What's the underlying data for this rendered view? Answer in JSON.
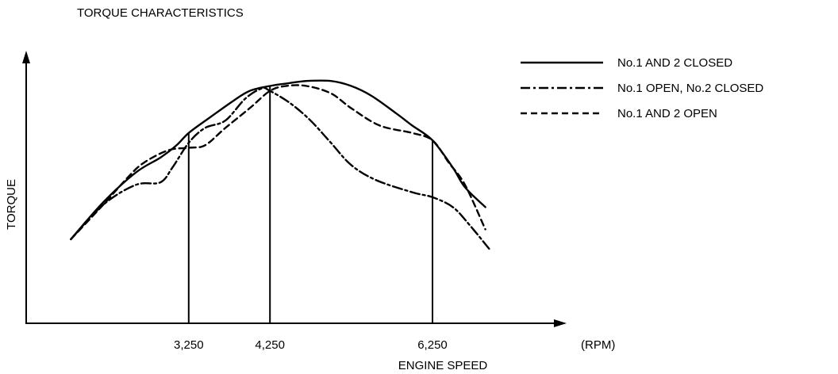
{
  "chart_data": {
    "type": "line",
    "title": "TORQUE CHARACTERISTICS",
    "xlabel": "ENGINE SPEED",
    "ylabel": "TORQUE",
    "x_unit": "(RPM)",
    "x_ticks": [
      {
        "value": 3250,
        "label": "3,250"
      },
      {
        "value": 4250,
        "label": "4,250"
      },
      {
        "value": 6250,
        "label": "6,250"
      }
    ],
    "y_ticks": [],
    "xlim": [
      1250,
      7500
    ],
    "ylim": [
      0,
      100
    ],
    "grid": false,
    "legend_position": "top-right",
    "series": [
      {
        "name": "No.1 AND 2 CLOSED",
        "style": "solid",
        "color": "#000000",
        "x": [
          1800,
          2200,
          2600,
          2900,
          3100,
          3250,
          3500,
          3800,
          4000,
          4250,
          4450,
          4700,
          5000,
          5250,
          5500,
          5800,
          6000,
          6250,
          6500,
          6650,
          6900
        ],
        "y": [
          34,
          49,
          61,
          67,
          72,
          77,
          83,
          90,
          94,
          96,
          97,
          98,
          98,
          96,
          92,
          85,
          80,
          74,
          63,
          55,
          47
        ]
      },
      {
        "name": "No.1 OPEN, No.2 CLOSED",
        "style": "dash-dot",
        "color": "#000000",
        "x": [
          1800,
          2200,
          2600,
          2900,
          3050,
          3250,
          3450,
          3700,
          3950,
          4150,
          4250,
          4500,
          4750,
          5000,
          5250,
          5550,
          6000,
          6250,
          6500,
          6700,
          6950
        ],
        "y": [
          34,
          48,
          56,
          57,
          63,
          73,
          79,
          82,
          91,
          95,
          94,
          89,
          82,
          73,
          64,
          58,
          53,
          51,
          47,
          40,
          30
        ]
      },
      {
        "name": "No.1 AND 2 OPEN",
        "style": "dashed",
        "color": "#000000",
        "x": [
          1800,
          2200,
          2500,
          2700,
          3000,
          3250,
          3450,
          3700,
          4000,
          4250,
          4450,
          4700,
          5000,
          5250,
          5600,
          6000,
          6250,
          6450,
          6650,
          6900
        ],
        "y": [
          34,
          48,
          59,
          65,
          70,
          71,
          72,
          79,
          87,
          94,
          96,
          96,
          93,
          87,
          80,
          77,
          74,
          65,
          56,
          38
        ]
      }
    ]
  }
}
